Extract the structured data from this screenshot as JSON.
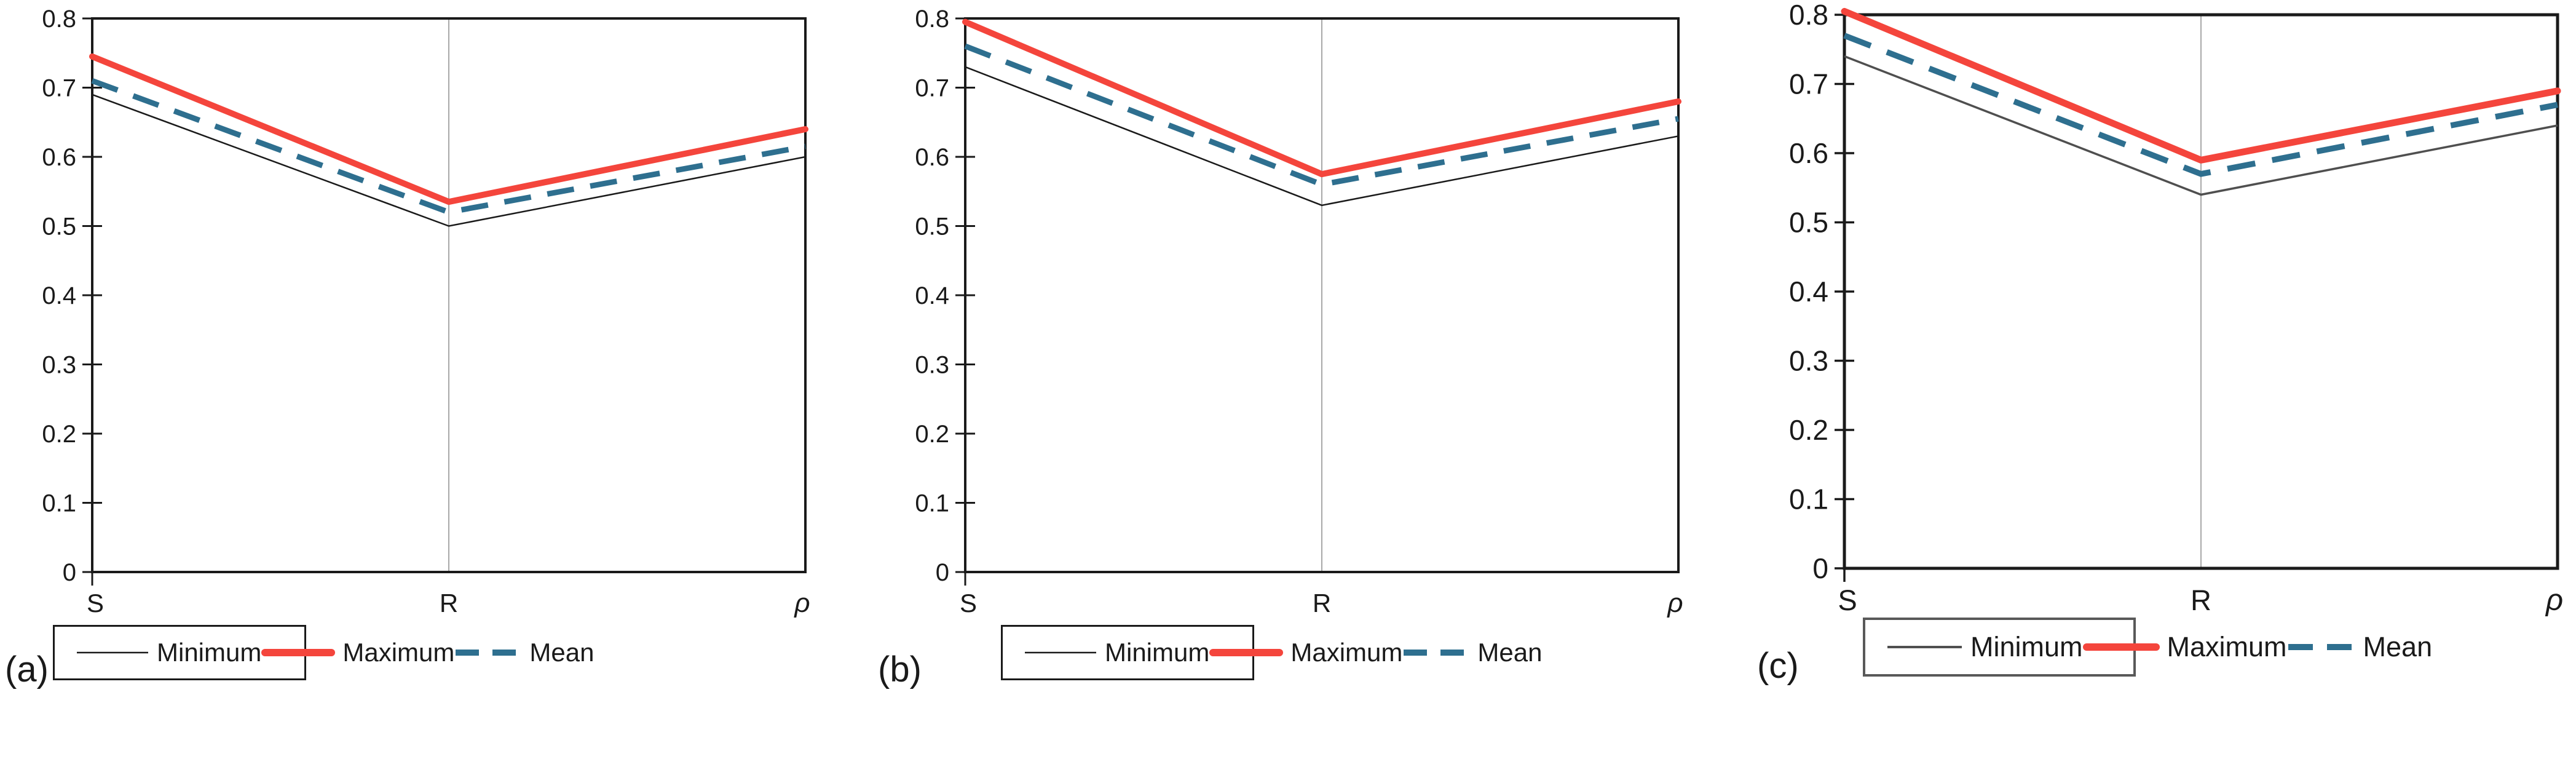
{
  "figure": {
    "captions": [
      "(a)",
      "(b)",
      "(c)"
    ]
  },
  "axes": {
    "y_ticks": [
      "0.8",
      "0.7",
      "0.6",
      "0.5",
      "0.4",
      "0.3",
      "0.2",
      "0.1",
      "0"
    ],
    "x_labels": [
      "S",
      "R",
      "ρ"
    ]
  },
  "legend": {
    "items": [
      {
        "label": "Minimum"
      },
      {
        "label": "Maximum"
      },
      {
        "label": "Mean"
      }
    ]
  },
  "colors": {
    "maximum": "#F4453C",
    "mean": "#2E6F8F",
    "minimum": "#1a1a1a",
    "minimum_c": "#4f4f4f",
    "gridline": "#a8a8a8",
    "frame": "#1a1a1a"
  },
  "chart_data": [
    {
      "type": "line",
      "panel": "(a)",
      "categories": [
        "S",
        "R",
        "ρ"
      ],
      "ylim": [
        0,
        0.8
      ],
      "grid": "single-center-vertical-gridline",
      "legend_position": "bottom",
      "series": [
        {
          "name": "Minimum",
          "values": [
            0.69,
            0.5,
            0.6
          ]
        },
        {
          "name": "Mean",
          "values": [
            0.71,
            0.52,
            0.615
          ]
        },
        {
          "name": "Maximum",
          "values": [
            0.745,
            0.535,
            0.64
          ]
        }
      ]
    },
    {
      "type": "line",
      "panel": "(b)",
      "categories": [
        "S",
        "R",
        "ρ"
      ],
      "ylim": [
        0,
        0.8
      ],
      "grid": "single-center-vertical-gridline",
      "legend_position": "bottom",
      "series": [
        {
          "name": "Minimum",
          "values": [
            0.73,
            0.53,
            0.63
          ]
        },
        {
          "name": "Mean",
          "values": [
            0.76,
            0.56,
            0.655
          ]
        },
        {
          "name": "Maximum",
          "values": [
            0.795,
            0.575,
            0.68
          ]
        }
      ]
    },
    {
      "type": "line",
      "panel": "(c)",
      "categories": [
        "S",
        "R",
        "ρ"
      ],
      "ylim": [
        0,
        0.8
      ],
      "grid": "single-center-vertical-gridline",
      "legend_position": "bottom",
      "series": [
        {
          "name": "Minimum",
          "values": [
            0.74,
            0.54,
            0.64
          ]
        },
        {
          "name": "Mean",
          "values": [
            0.77,
            0.57,
            0.67
          ]
        },
        {
          "name": "Maximum",
          "values": [
            0.805,
            0.59,
            0.69
          ]
        }
      ]
    }
  ]
}
